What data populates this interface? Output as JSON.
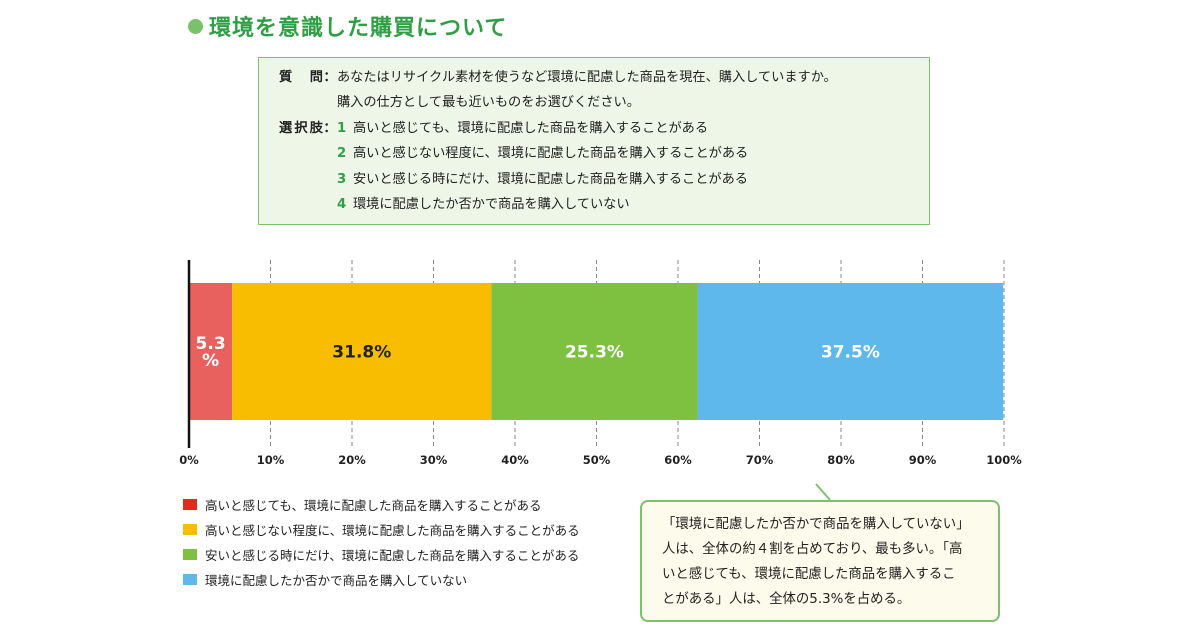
{
  "page": {
    "title": "環境を意識した購買について"
  },
  "question_box": {
    "question_label": "質問",
    "question_lines": [
      "あなたはリサイクル素材を使うなど環境に配慮した商品を現在、購入していますか。",
      "購入の仕方として最も近いものをお選びください。"
    ],
    "options_label": "選択肢",
    "colon": "：",
    "options": [
      {
        "num": "1",
        "text": "高いと感じても、環境に配慮した商品を購入することがある"
      },
      {
        "num": "2",
        "text": "高いと感じない程度に、環境に配慮した商品を購入することがある"
      },
      {
        "num": "3",
        "text": "安いと感じる時にだけ、環境に配慮した商品を購入することがある"
      },
      {
        "num": "4",
        "text": "環境に配慮したか否かで商品を購入していない"
      }
    ]
  },
  "chart_data": {
    "type": "bar",
    "orientation": "horizontal",
    "stacked": true,
    "xlim": [
      0,
      100
    ],
    "x_ticks": [
      "0%",
      "10%",
      "20%",
      "30%",
      "40%",
      "50%",
      "60%",
      "70%",
      "80%",
      "90%",
      "100%"
    ],
    "grid": "vertical dashed",
    "series": [
      {
        "name": "高いと感じても、環境に配慮した商品を購入することがある",
        "value": 5.3,
        "label_lines": [
          "5.3",
          "%"
        ],
        "color": "#e8615f",
        "label_color": "#ffffff"
      },
      {
        "name": "高いと感じない程度に、環境に配慮した商品を購入することがある",
        "value": 31.8,
        "label_lines": [
          "31.8%"
        ],
        "color": "#f8bd00",
        "label_color": "#222222"
      },
      {
        "name": "安いと感じる時にだけ、環境に配慮した商品を購入することがある",
        "value": 25.3,
        "label_lines": [
          "25.3%"
        ],
        "color": "#7ec141",
        "label_color": "#ffffff"
      },
      {
        "name": "環境に配慮したか否かで商品を購入していない",
        "value": 37.5,
        "label_lines": [
          "37.5%"
        ],
        "color": "#5fb8ec",
        "label_color": "#ffffff"
      }
    ]
  },
  "legend": {
    "items": [
      {
        "label": "高いと感じても、環境に配慮した商品を購入することがある",
        "color": "#e02a1c"
      },
      {
        "label": "高いと感じない程度に、環境に配慮した商品を購入することがある",
        "color": "#f8bd00"
      },
      {
        "label": "安いと感じる時にだけ、環境に配慮した商品を購入することがある",
        "color": "#7ec141"
      },
      {
        "label": "環境に配慮したか否かで商品を購入していない",
        "color": "#5fb8ec"
      }
    ]
  },
  "comment": {
    "lines": [
      "「環境に配慮したか否かで商品を購入していない」",
      "人は、全体の約４割を占めており、最も多い。「高",
      "いと感じても、環境に配慮した商品を購入するこ",
      "とがある」人は、全体の5.3%を占める。"
    ]
  }
}
